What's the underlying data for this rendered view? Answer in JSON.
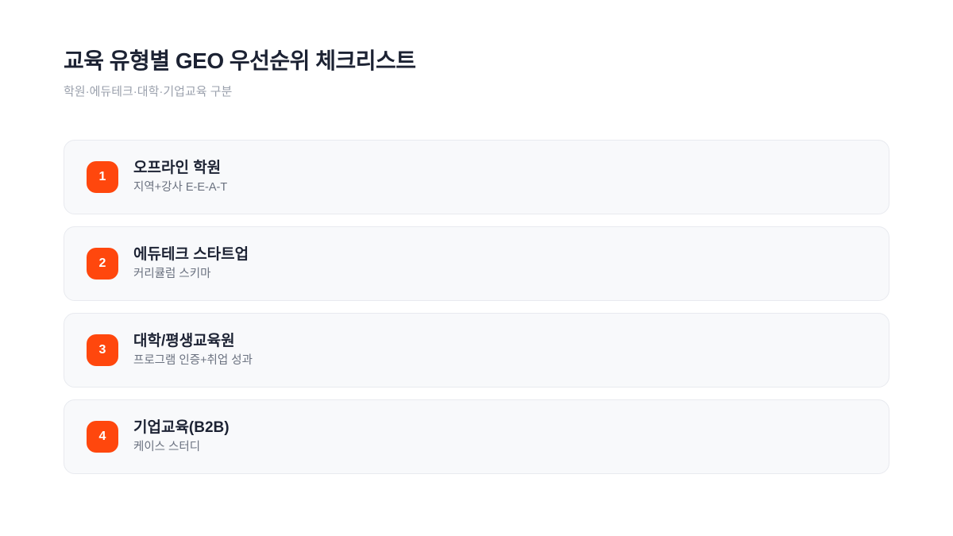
{
  "page": {
    "title": "교육 유형별 GEO 우선순위 체크리스트",
    "subtitle": "학원·에듀테크·대학·기업교육 구분"
  },
  "colors": {
    "accent_badge": "#ff470d",
    "heading_text": "#1c2233",
    "muted_text": "#6b7280",
    "subtitle_text": "#9ba1ad",
    "card_background": "#f8f9fb",
    "card_border": "#e8eaef",
    "page_background": "#ffffff"
  },
  "checklist": {
    "items": [
      {
        "number": "1",
        "title": "오프라인 학원",
        "subtitle": "지역+강사 E-E-A-T"
      },
      {
        "number": "2",
        "title": "에듀테크 스타트업",
        "subtitle": "커리큘럼 스키마"
      },
      {
        "number": "3",
        "title": "대학/평생교육원",
        "subtitle": "프로그램 인증+취업 성과"
      },
      {
        "number": "4",
        "title": "기업교육(B2B)",
        "subtitle": "케이스 스터디"
      }
    ]
  }
}
